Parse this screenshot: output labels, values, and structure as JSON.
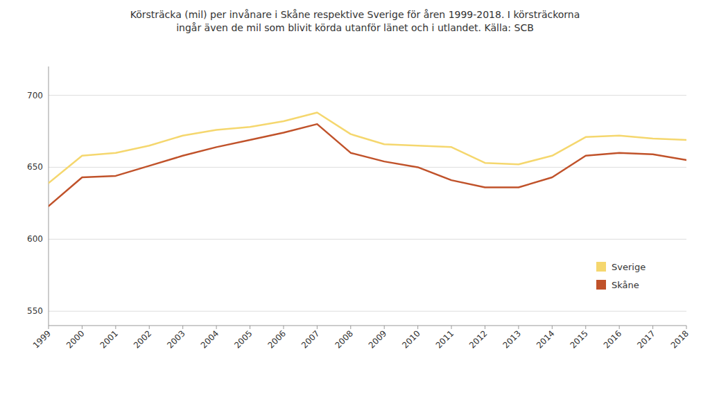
{
  "chart_data": {
    "type": "line",
    "title": "Körsträcka (mil) per invånare i Skåne respektive Sverige för åren 1999-2018. I körsträckorna\ningår även de mil som blivit körda utanför länet och i utlandet. Källa: SCB",
    "x": [
      1999,
      2000,
      2001,
      2002,
      2003,
      2004,
      2005,
      2006,
      2007,
      2008,
      2009,
      2010,
      2011,
      2012,
      2013,
      2014,
      2015,
      2016,
      2017,
      2018
    ],
    "series": [
      {
        "name": "Sverige",
        "color": "#F5D76E",
        "values": [
          639,
          658,
          660,
          665,
          672,
          676,
          678,
          682,
          688,
          673,
          666,
          665,
          664,
          653,
          652,
          658,
          671,
          672,
          670,
          669
        ]
      },
      {
        "name": "Skåne",
        "color": "#C0522A",
        "values": [
          623,
          643,
          644,
          651,
          658,
          664,
          669,
          674,
          680,
          660,
          654,
          650,
          641,
          636,
          636,
          643,
          658,
          660,
          659,
          655
        ]
      }
    ],
    "xlim": [
      1999,
      2018
    ],
    "xticks": [
      1999,
      2000,
      2001,
      2002,
      2003,
      2004,
      2005,
      2006,
      2007,
      2008,
      2009,
      2010,
      2011,
      2012,
      2013,
      2014,
      2015,
      2016,
      2017,
      2018
    ],
    "ylim": [
      540,
      720
    ],
    "yticks": [
      550,
      600,
      650,
      700
    ],
    "grid": true,
    "legend": "bottom-right"
  }
}
